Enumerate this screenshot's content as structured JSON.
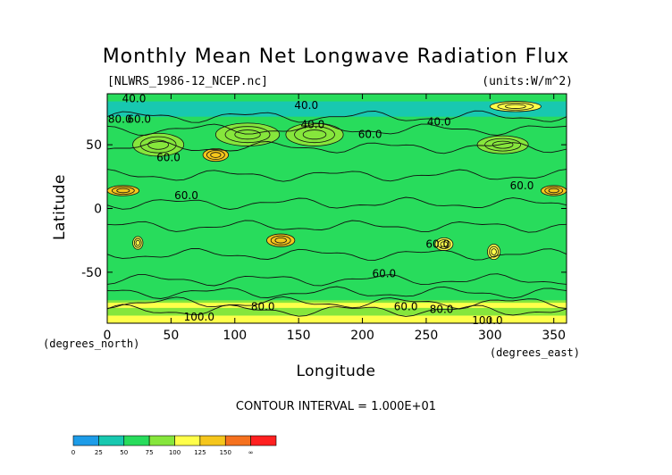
{
  "chart_data": {
    "type": "heatmap",
    "title": "Monthly Mean Net Longwave Radiation Flux",
    "file_label": "[NLWRS_1986-12_NCEP.nc]",
    "units_label": "(units:W/m^2)",
    "xlabel": "Longitude",
    "ylabel": "Latitude",
    "x_unit_note": "(degrees_east)",
    "y_unit_note": "(degrees_north)",
    "xlim": [
      0,
      360
    ],
    "ylim": [
      -90,
      90
    ],
    "x_ticks": [
      0,
      50,
      100,
      150,
      200,
      250,
      300,
      350
    ],
    "y_ticks": [
      -50,
      0,
      50
    ],
    "contour_interval_text": "CONTOUR INTERVAL = 1.000E+01",
    "contour_labels": [
      {
        "text": "40.0",
        "lon": 21,
        "lat": 86
      },
      {
        "text": "40.0",
        "lon": 156,
        "lat": 81
      },
      {
        "text": "40.0",
        "lon": 260,
        "lat": 68
      },
      {
        "text": "40.0",
        "lon": 161,
        "lat": 66
      },
      {
        "text": "60.0",
        "lon": 25,
        "lat": 70
      },
      {
        "text": "60.0",
        "lon": 48,
        "lat": 40
      },
      {
        "text": "60.0",
        "lon": 206,
        "lat": 58
      },
      {
        "text": "60.0",
        "lon": 325,
        "lat": 18
      },
      {
        "text": "60.0",
        "lon": 62,
        "lat": 10
      },
      {
        "text": "60.0",
        "lon": 217,
        "lat": -51
      },
      {
        "text": "60.0",
        "lon": 259,
        "lat": -28
      },
      {
        "text": "80.0",
        "lon": 10,
        "lat": 70
      },
      {
        "text": "80.0",
        "lon": 122,
        "lat": -77
      },
      {
        "text": "60.0",
        "lon": 234,
        "lat": -77
      },
      {
        "text": "80.0",
        "lon": 262,
        "lat": -79
      },
      {
        "text": "100.0",
        "lon": 72,
        "lat": -85
      },
      {
        "text": "100.0",
        "lon": 298,
        "lat": -88
      }
    ],
    "colorbar": {
      "boundaries": [
        "0",
        "25",
        "50",
        "75",
        "100",
        "125",
        "150",
        "∞"
      ],
      "colors": [
        "#1d9ce8",
        "#18c8b0",
        "#28dc5c",
        "#86e63c",
        "#ffff4a",
        "#f5c61c",
        "#f5711e",
        "#ff2020"
      ]
    },
    "regions": [
      {
        "lon": 0,
        "lat": 0,
        "w": 360,
        "h": 180,
        "value": 70,
        "note": "background band"
      },
      {
        "lon": 0,
        "lat": 30,
        "w": 360,
        "h": 30,
        "value": 55
      },
      {
        "lon": 0,
        "lat": -50,
        "w": 360,
        "h": 20,
        "value": 55
      },
      {
        "lon": 0,
        "lat": 78,
        "w": 360,
        "h": 12,
        "value": 45
      },
      {
        "lon": 0,
        "lat": -78,
        "w": 360,
        "h": 12,
        "value": 80
      },
      {
        "lon": 0,
        "lat": -87,
        "w": 360,
        "h": 6,
        "value": 120
      },
      {
        "lon": 0,
        "lat": 14,
        "w": 25,
        "h": 8,
        "value": 125
      },
      {
        "lon": 340,
        "lat": 14,
        "w": 20,
        "h": 8,
        "value": 125
      },
      {
        "lon": 75,
        "lat": 42,
        "w": 20,
        "h": 10,
        "value": 135
      },
      {
        "lon": 140,
        "lat": 58,
        "w": 45,
        "h": 18,
        "value": 95
      },
      {
        "lon": 85,
        "lat": 58,
        "w": 50,
        "h": 18,
        "value": 88
      },
      {
        "lon": 125,
        "lat": -25,
        "w": 22,
        "h": 10,
        "value": 140
      },
      {
        "lon": 20,
        "lat": -27,
        "w": 8,
        "h": 10,
        "value": 115
      },
      {
        "lon": 298,
        "lat": -34,
        "w": 10,
        "h": 12,
        "value": 120
      },
      {
        "lon": 257,
        "lat": -28,
        "w": 14,
        "h": 10,
        "value": 100
      },
      {
        "lon": 300,
        "lat": 80,
        "w": 40,
        "h": 8,
        "value": 100
      },
      {
        "lon": 290,
        "lat": 50,
        "w": 40,
        "h": 14,
        "value": 90
      },
      {
        "lon": 20,
        "lat": 50,
        "w": 40,
        "h": 18,
        "value": 85
      },
      {
        "lon": 0,
        "lat": -76,
        "w": 360,
        "h": 4,
        "value": 100
      }
    ]
  }
}
